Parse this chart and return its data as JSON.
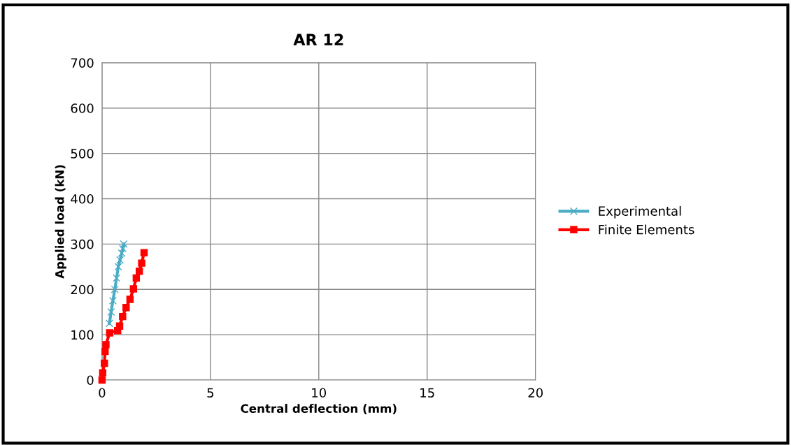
{
  "chart_data": {
    "type": "line",
    "title": "AR 12",
    "xlabel": "Central deflection (mm)",
    "ylabel": "Applied load (kN)",
    "xlim": [
      0,
      20
    ],
    "xticks": [
      0,
      5,
      10,
      15,
      20
    ],
    "ylim": [
      0,
      700
    ],
    "yticks": [
      0,
      100,
      200,
      300,
      400,
      500,
      600,
      700
    ],
    "grid": true,
    "legend": "right",
    "series": [
      {
        "name": "Experimental",
        "color": "#4bacc6",
        "marker": "cross",
        "x": [
          0.34,
          0.42,
          0.5,
          0.59,
          0.67,
          0.75,
          0.83,
          0.91,
          0.96,
          1.0
        ],
        "values": [
          125,
          150,
          175,
          200,
          225,
          250,
          265,
          280,
          290,
          300
        ]
      },
      {
        "name": "Finite Elements",
        "color": "#ff0000",
        "marker": "square",
        "x": [
          0,
          0.03,
          0.11,
          0.14,
          0.18,
          0.35,
          0.72,
          0.81,
          0.95,
          1.11,
          1.29,
          1.45,
          1.58,
          1.72,
          1.83,
          1.94
        ],
        "values": [
          0,
          16,
          37,
          63,
          78,
          104,
          109,
          119,
          140,
          160,
          178,
          201,
          225,
          240,
          258,
          281
        ]
      }
    ]
  }
}
